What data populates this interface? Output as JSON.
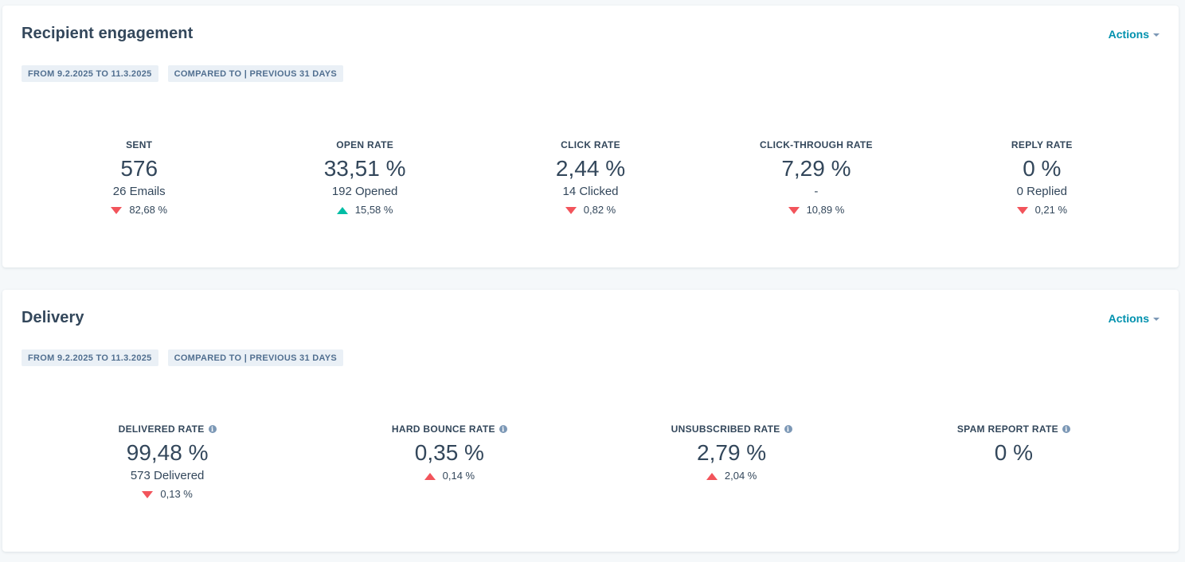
{
  "engagement": {
    "title": "Recipient engagement",
    "actions_label": "Actions",
    "tags": [
      "FROM 9.2.2025 TO 11.3.2025",
      "COMPARED TO | PREVIOUS 31 DAYS"
    ],
    "metrics": [
      {
        "label": "SENT",
        "value": "576",
        "sub": "26 Emails",
        "change": "82,68 %",
        "direction": "down"
      },
      {
        "label": "OPEN RATE",
        "value": "33,51 %",
        "sub": "192 Opened",
        "change": "15,58 %",
        "direction": "up"
      },
      {
        "label": "CLICK RATE",
        "value": "2,44 %",
        "sub": "14 Clicked",
        "change": "0,82 %",
        "direction": "down"
      },
      {
        "label": "CLICK-THROUGH RATE",
        "value": "7,29 %",
        "sub": "-",
        "change": "10,89 %",
        "direction": "down"
      },
      {
        "label": "REPLY RATE",
        "value": "0 %",
        "sub": "0 Replied",
        "change": "0,21 %",
        "direction": "down"
      }
    ]
  },
  "delivery": {
    "title": "Delivery",
    "actions_label": "Actions",
    "tags": [
      "FROM 9.2.2025 TO 11.3.2025",
      "COMPARED TO | PREVIOUS 31 DAYS"
    ],
    "metrics": [
      {
        "label": "DELIVERED RATE",
        "value": "99,48 %",
        "sub": "573 Delivered",
        "change": "0,13 %",
        "direction": "down"
      },
      {
        "label": "HARD BOUNCE RATE",
        "value": "0,35 %",
        "change": "0,14 %",
        "direction": "up"
      },
      {
        "label": "UNSUBSCRIBED RATE",
        "value": "2,79 %",
        "change": "2,04 %",
        "direction": "up"
      },
      {
        "label": "SPAM REPORT RATE",
        "value": "0 %"
      }
    ]
  },
  "icons": {
    "info": "info-icon",
    "caret": "caret-down-icon",
    "trend_down": "triangle-down-icon",
    "trend_up": "triangle-up-icon"
  },
  "colors": {
    "accent": "#0091ae",
    "negative": "#f2545b",
    "positive": "#00bda5",
    "tag_bg": "#eaf0f6"
  }
}
